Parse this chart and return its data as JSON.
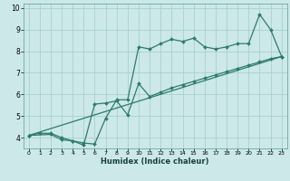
{
  "title": "",
  "xlabel": "Humidex (Indice chaleur)",
  "bg_color": "#cce8e8",
  "line_color": "#2e7b6e",
  "grid_color": "#a0cccc",
  "xlim": [
    -0.5,
    23.5
  ],
  "ylim": [
    3.5,
    10.2
  ],
  "xticks": [
    0,
    1,
    2,
    3,
    4,
    5,
    6,
    7,
    8,
    9,
    10,
    11,
    12,
    13,
    14,
    15,
    16,
    17,
    18,
    19,
    20,
    21,
    22,
    23
  ],
  "yticks": [
    4,
    5,
    6,
    7,
    8,
    9,
    10
  ],
  "line1_x": [
    0,
    1,
    2,
    3,
    4,
    5,
    6,
    7,
    8,
    9,
    10,
    11,
    12,
    13,
    14,
    15,
    16,
    17,
    18,
    19,
    20,
    21,
    22,
    23
  ],
  "line1_y": [
    4.1,
    4.2,
    4.2,
    4.0,
    3.85,
    3.75,
    3.7,
    4.9,
    5.75,
    5.75,
    8.2,
    8.1,
    8.35,
    8.55,
    8.45,
    8.6,
    8.2,
    8.1,
    8.2,
    8.35,
    8.35,
    9.7,
    9.0,
    7.75
  ],
  "line2_x": [
    0,
    2,
    3,
    4,
    5,
    6,
    7,
    8,
    9,
    10,
    11,
    12,
    13,
    14,
    15,
    16,
    17,
    18,
    19,
    20,
    21,
    22,
    23
  ],
  "line2_y": [
    4.1,
    4.15,
    3.9,
    3.85,
    3.65,
    5.55,
    5.6,
    5.7,
    5.05,
    6.5,
    5.9,
    6.1,
    6.3,
    6.45,
    6.6,
    6.75,
    6.9,
    7.05,
    7.2,
    7.35,
    7.5,
    7.65,
    7.75
  ],
  "line3_x": [
    0,
    23
  ],
  "line3_y": [
    4.1,
    7.75
  ]
}
